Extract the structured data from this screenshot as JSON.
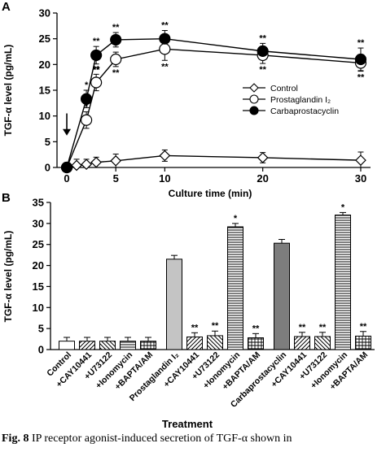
{
  "caption": {
    "label": "Fig. 8",
    "text": "IP receptor agonist-induced secretion of TGF-α shown in"
  },
  "chart_data": [
    {
      "panel": "A",
      "type": "line",
      "xlabel": "Culture time (min)",
      "ylabel": "TGF-α level (pg/mL)",
      "xlim": [
        -1,
        31
      ],
      "ylim": [
        0,
        30
      ],
      "xticks": [
        0,
        5,
        10,
        20,
        30
      ],
      "yticks": [
        0,
        5,
        10,
        15,
        20,
        25,
        30
      ],
      "legend_position": "right-middle",
      "annotations": [
        {
          "type": "arrow",
          "x": 0,
          "y_from": 10.5,
          "y_to": 6.2
        }
      ],
      "series": [
        {
          "name": "Control",
          "marker": "diamond",
          "x": [
            0,
            1,
            2,
            3,
            5,
            10,
            20,
            30
          ],
          "y": [
            0,
            0.4,
            0.6,
            1.0,
            1.3,
            2.3,
            1.9,
            1.4
          ],
          "err": [
            0.4,
            1.2,
            1.0,
            1.0,
            1.3,
            1.1,
            1.0,
            1.6
          ],
          "sig": [
            "",
            "",
            "",
            "",
            "",
            "",
            "",
            ""
          ]
        },
        {
          "name": "Prostaglandin I₂",
          "marker": "open-circle",
          "x": [
            0,
            2,
            3,
            5,
            10,
            20,
            30
          ],
          "y": [
            0,
            9.2,
            16.5,
            21.0,
            23.0,
            21.8,
            20.3
          ],
          "err": [
            0.4,
            1.6,
            1.6,
            1.4,
            2.2,
            1.6,
            1.6
          ],
          "sig": [
            "",
            "*",
            "**",
            "**",
            "**",
            "**",
            "**"
          ]
        },
        {
          "name": "Carbaprostacyclin",
          "marker": "filled-circle",
          "x": [
            0,
            2,
            3,
            5,
            10,
            20,
            30
          ],
          "y": [
            0,
            13.3,
            21.8,
            24.8,
            25.0,
            22.6,
            21.0
          ],
          "err": [
            0.4,
            1.7,
            1.7,
            1.4,
            1.6,
            1.5,
            2.2
          ],
          "sig": [
            "",
            "",
            "",
            "",
            "",
            "",
            ""
          ]
        }
      ]
    },
    {
      "panel": "B",
      "type": "bar",
      "xlabel": "Treatment",
      "ylabel": "TGF-α level (pg/mL)",
      "ylim": [
        0,
        35
      ],
      "yticks": [
        0,
        5,
        10,
        15,
        20,
        25,
        30,
        35
      ],
      "categories": [
        "Control",
        "+CAY10441",
        "+U73122",
        "+Ionomycin",
        "+BAPTA/AM",
        "Prostaglandin I₂",
        "+CAY10441",
        "+U73122",
        "+Ionomycin",
        "+BAPTA/AM",
        "Carbaprostacyclin",
        "+CAY10441",
        "+U73122",
        "+Ionomycin",
        "+BAPTA/AM"
      ],
      "values": [
        2.0,
        2.0,
        2.0,
        2.0,
        2.0,
        21.5,
        3.0,
        3.3,
        29.2,
        2.8,
        25.3,
        3.1,
        3.1,
        32.0,
        3.2
      ],
      "errors": [
        0.9,
        0.9,
        0.9,
        0.9,
        0.9,
        0.9,
        1.0,
        1.1,
        0.8,
        1.0,
        0.9,
        1.0,
        1.0,
        0.6,
        1.1
      ],
      "significance": [
        "",
        "",
        "",
        "",
        "",
        "",
        "**",
        "**",
        "*",
        "**",
        "",
        "**",
        "**",
        "*",
        "**"
      ],
      "fills": [
        "open",
        "diagonal",
        "backdiagonal",
        "horizontal",
        "grid",
        "light-gray",
        "diagonal",
        "backdiagonal",
        "horizontal",
        "grid",
        "dark-gray",
        "diagonal",
        "backdiagonal",
        "horizontal",
        "grid"
      ]
    }
  ]
}
